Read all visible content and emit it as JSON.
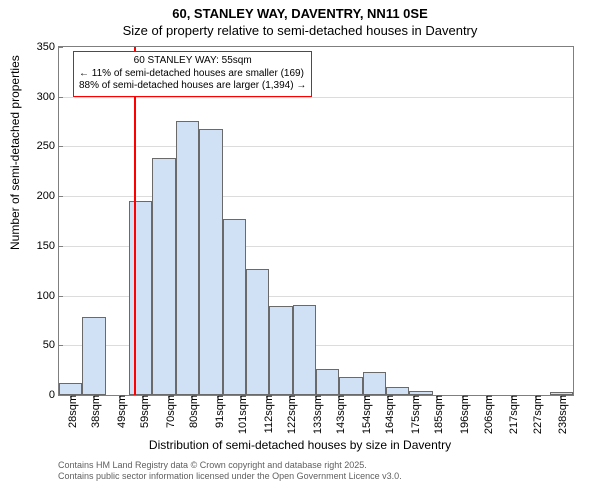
{
  "title_main": "60, STANLEY WAY, DAVENTRY, NN11 0SE",
  "title_sub": "Size of property relative to semi-detached houses in Daventry",
  "ylabel": "Number of semi-detached properties",
  "xlabel": "Distribution of semi-detached houses by size in Daventry",
  "chart": {
    "type": "histogram",
    "ylim": [
      0,
      350
    ],
    "ytick_step": 50,
    "y_ticks": [
      0,
      50,
      100,
      150,
      200,
      250,
      300,
      350
    ],
    "x_min": 23,
    "x_max": 243,
    "x_ticks": [
      28,
      38,
      49,
      59,
      70,
      80,
      91,
      101,
      112,
      122,
      133,
      143,
      154,
      164,
      175,
      185,
      196,
      206,
      217,
      227,
      238
    ],
    "x_tick_suffix": "sqm",
    "bar_fill": "#d0e0f5",
    "bar_stroke": "#6a6a6a",
    "grid_color": "#dcdcdc",
    "background_color": "#ffffff",
    "vline_x": 55,
    "vline_color": "#ff0000",
    "bars": [
      {
        "x0": 23,
        "x1": 33,
        "y": 12
      },
      {
        "x0": 33,
        "x1": 43,
        "y": 78
      },
      {
        "x0": 43,
        "x1": 53,
        "y": 0
      },
      {
        "x0": 53,
        "x1": 63,
        "y": 195
      },
      {
        "x0": 63,
        "x1": 73,
        "y": 238
      },
      {
        "x0": 73,
        "x1": 83,
        "y": 276
      },
      {
        "x0": 83,
        "x1": 93,
        "y": 268
      },
      {
        "x0": 93,
        "x1": 103,
        "y": 177
      },
      {
        "x0": 103,
        "x1": 113,
        "y": 127
      },
      {
        "x0": 113,
        "x1": 123,
        "y": 90
      },
      {
        "x0": 123,
        "x1": 133,
        "y": 91
      },
      {
        "x0": 133,
        "x1": 143,
        "y": 26
      },
      {
        "x0": 143,
        "x1": 153,
        "y": 18
      },
      {
        "x0": 153,
        "x1": 163,
        "y": 23
      },
      {
        "x0": 163,
        "x1": 173,
        "y": 8
      },
      {
        "x0": 173,
        "x1": 183,
        "y": 4
      },
      {
        "x0": 183,
        "x1": 193,
        "y": 0
      },
      {
        "x0": 193,
        "x1": 203,
        "y": 0
      },
      {
        "x0": 203,
        "x1": 213,
        "y": 0
      },
      {
        "x0": 213,
        "x1": 223,
        "y": 0
      },
      {
        "x0": 223,
        "x1": 233,
        "y": 0
      },
      {
        "x0": 233,
        "x1": 243,
        "y": 3
      }
    ]
  },
  "annot": {
    "border_color": "#ff0000",
    "line1": "60 STANLEY WAY: 55sqm",
    "line2": "← 11% of semi-detached houses are smaller (169)",
    "line3": "88% of semi-detached houses are larger (1,394) →"
  },
  "attrib": {
    "line1": "Contains HM Land Registry data © Crown copyright and database right 2025.",
    "line2": "Contains public sector information licensed under the Open Government Licence v3.0."
  }
}
